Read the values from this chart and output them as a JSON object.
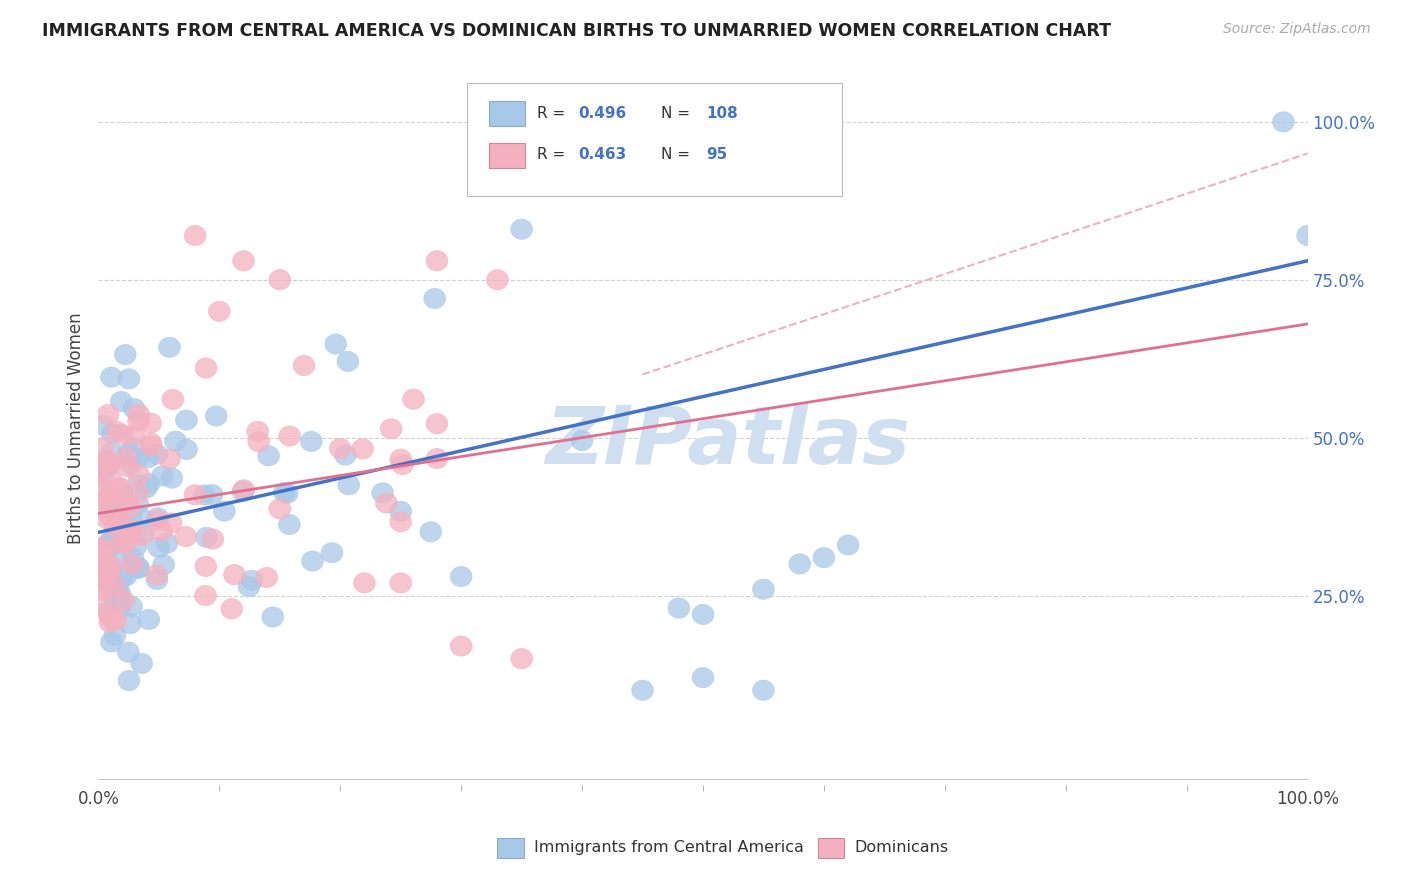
{
  "title": "IMMIGRANTS FROM CENTRAL AMERICA VS DOMINICAN BIRTHS TO UNMARRIED WOMEN CORRELATION CHART",
  "source": "Source: ZipAtlas.com",
  "ylabel": "Births to Unmarried Women",
  "r_blue": 0.496,
  "n_blue": 108,
  "r_pink": 0.463,
  "n_pink": 95,
  "legend_blue": "Immigrants from Central America",
  "legend_pink": "Dominicans",
  "blue_scatter_color": "#A8C8E8",
  "pink_scatter_color": "#F4B0C0",
  "line_blue": "#4472C4",
  "line_pink": "#E07090",
  "line_dashed_color": "#E8A0B0",
  "background_color": "#FFFFFF",
  "grid_color": "#CCCCCC",
  "ytick_color": "#4472C4",
  "watermark_color": "#D0DFF0",
  "xlim": [
    0,
    1
  ],
  "ylim_min": -0.05,
  "ylim_max": 1.08,
  "ytick_positions": [
    0.25,
    0.5,
    0.75,
    1.0
  ],
  "ytick_labels": [
    "25.0%",
    "50.0%",
    "75.0%",
    "100.0%"
  ],
  "xtick_positions": [
    0.0,
    1.0
  ],
  "xtick_labels": [
    "0.0%",
    "100.0%"
  ],
  "blue_line_start_y": 0.35,
  "blue_line_end_y": 0.78,
  "pink_line_start_y": 0.38,
  "pink_line_end_y": 0.68,
  "dashed_line_start_y": 0.6,
  "dashed_line_end_y": 0.95,
  "seed_blue": 42,
  "seed_pink": 99
}
